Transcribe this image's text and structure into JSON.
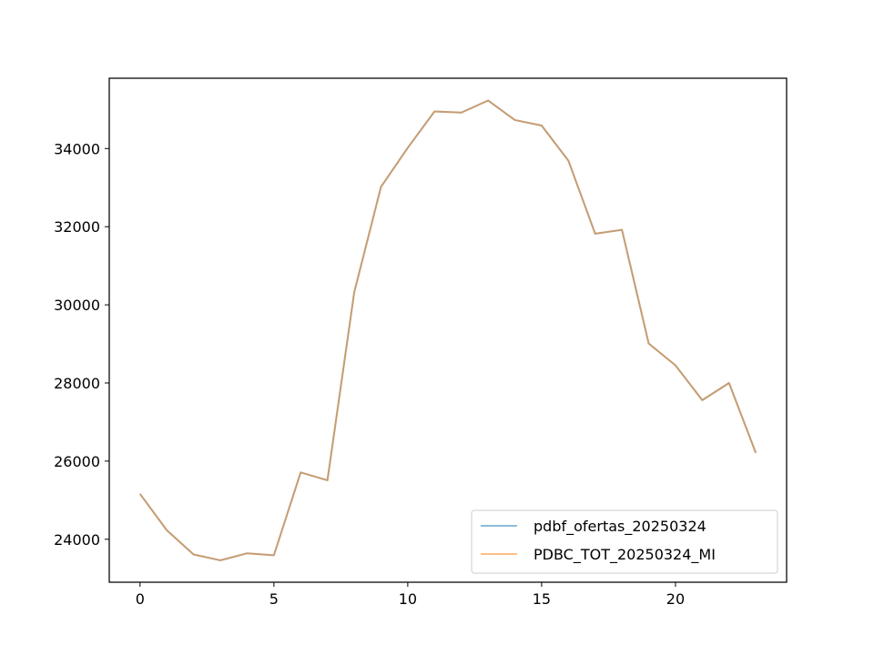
{
  "chart_data": {
    "type": "line",
    "title": "",
    "xlabel": "",
    "ylabel": "",
    "xlim": [
      -1.15,
      24.15
    ],
    "ylim": [
      22900,
      35800
    ],
    "xticks": [
      0,
      5,
      10,
      15,
      20
    ],
    "yticks": [
      24000,
      26000,
      28000,
      30000,
      32000,
      34000
    ],
    "grid": false,
    "legend_position": "lower-right",
    "x": [
      0,
      1,
      2,
      3,
      4,
      5,
      6,
      7,
      8,
      9,
      10,
      11,
      12,
      13,
      14,
      15,
      16,
      17,
      18,
      19,
      20,
      21,
      22,
      23
    ],
    "series": [
      {
        "name": "pdbf_ofertas_20250324",
        "color": "#1f77b4",
        "values": [
          25160,
          24230,
          23610,
          23460,
          23640,
          23590,
          25710,
          25510,
          30320,
          33020,
          34020,
          34950,
          34920,
          35230,
          34730,
          34590,
          33690,
          31820,
          31920,
          29010,
          28450,
          27560,
          28000,
          26210
        ]
      },
      {
        "name": "PDBC_TOT_20250324_MI",
        "color": "#ff7f0e",
        "values": [
          25160,
          24230,
          23610,
          23460,
          23640,
          23590,
          25710,
          25510,
          30320,
          33020,
          34020,
          34950,
          34920,
          35230,
          34730,
          34590,
          33690,
          31820,
          31920,
          29010,
          28450,
          27560,
          28000,
          26210
        ]
      }
    ]
  }
}
